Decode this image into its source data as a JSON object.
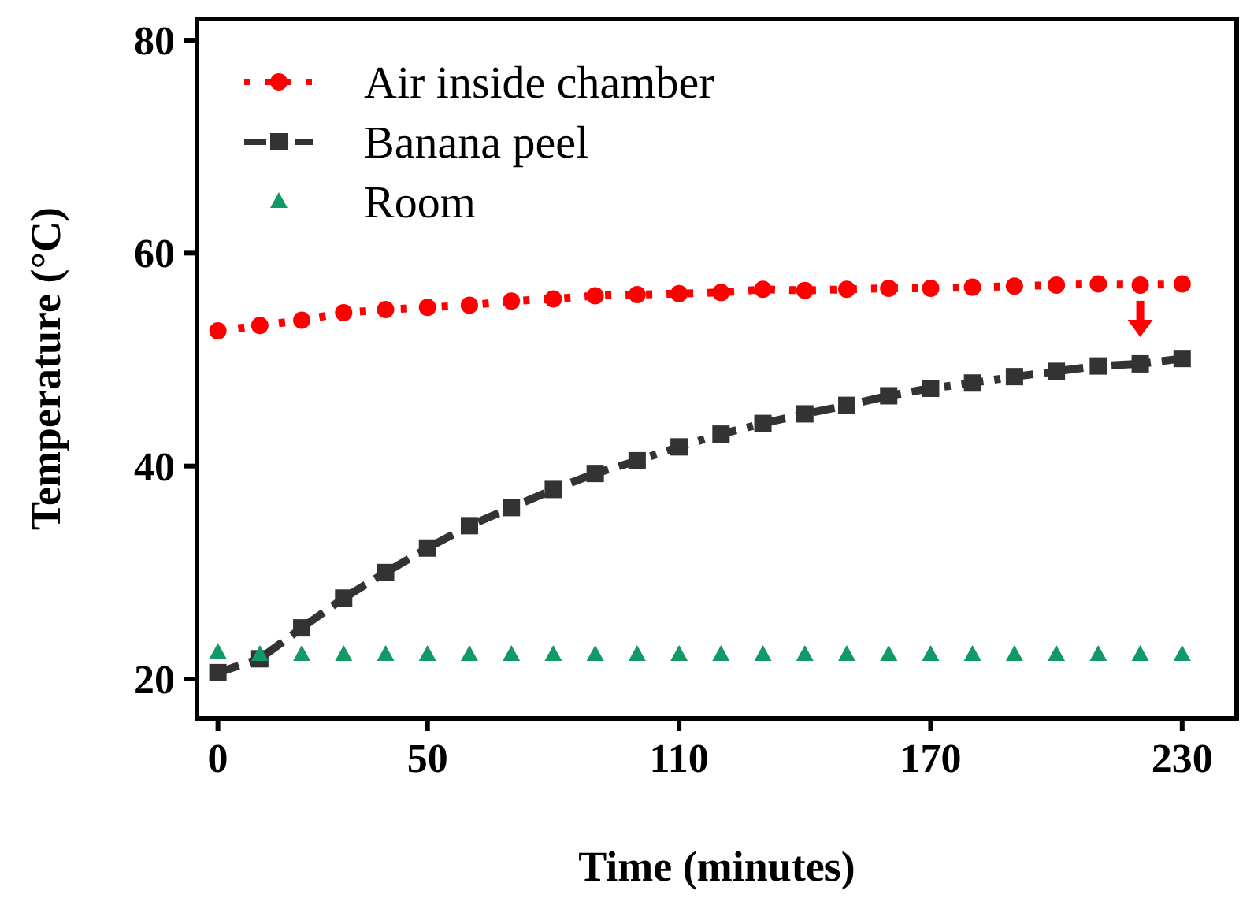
{
  "chart_data": {
    "type": "line",
    "xlabel": "Time (minutes)",
    "ylabel": "Temperature (°C)",
    "xlim": [
      -5,
      243
    ],
    "xticks": [
      0,
      50,
      110,
      170,
      230
    ],
    "ylim": [
      16.3,
      82
    ],
    "yticks": [
      20,
      40,
      60,
      80
    ],
    "x": [
      0,
      10,
      20,
      30,
      40,
      50,
      60,
      70,
      80,
      90,
      100,
      110,
      120,
      130,
      140,
      150,
      160,
      170,
      180,
      190,
      200,
      210,
      220,
      230
    ],
    "series": [
      {
        "name": "Air inside chamber",
        "color": "#ff0000",
        "marker": "circle",
        "line_style": "dotted",
        "values": [
          52.7,
          53.2,
          53.7,
          54.4,
          54.7,
          54.9,
          55.1,
          55.5,
          55.7,
          56.0,
          56.1,
          56.2,
          56.3,
          56.6,
          56.5,
          56.6,
          56.7,
          56.7,
          56.8,
          56.9,
          57.0,
          57.1,
          57.0,
          57.1
        ]
      },
      {
        "name": "Banana peel",
        "color": "#333333",
        "marker": "square",
        "line_style": "dashed",
        "values": [
          20.6,
          21.9,
          24.8,
          27.6,
          30.0,
          32.3,
          34.4,
          36.1,
          37.8,
          39.3,
          40.5,
          41.8,
          43.0,
          44.0,
          44.9,
          45.7,
          46.6,
          47.3,
          47.8,
          48.4,
          48.9,
          49.4,
          49.6,
          50.1
        ]
      },
      {
        "name": "Room",
        "type": "scatter",
        "color": "#119966",
        "marker": "triangle",
        "values": [
          22.5,
          22.3,
          22.3,
          22.3,
          22.3,
          22.3,
          22.3,
          22.3,
          22.3,
          22.3,
          22.3,
          22.3,
          22.3,
          22.3,
          22.3,
          22.3,
          22.3,
          22.3,
          22.3,
          22.3,
          22.3,
          22.3,
          22.3,
          22.3
        ]
      }
    ],
    "grid": false,
    "legend": "top left"
  }
}
